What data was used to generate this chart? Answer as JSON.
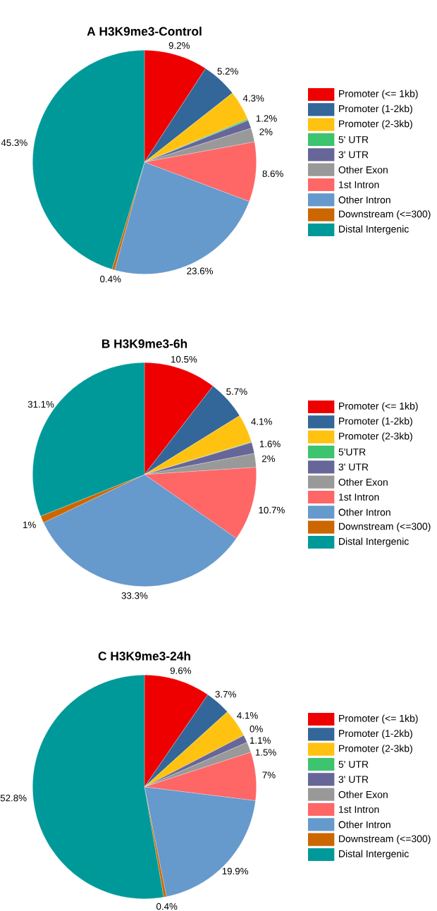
{
  "chart_data": [
    {
      "type": "pie",
      "title": "A H3K9me3-Control",
      "legend": "right",
      "categories": [
        "Promoter (<= 1kb)",
        "Promoter (1-2kb)",
        "Promoter (2-3kb)",
        "5' UTR",
        "3' UTR",
        "Other Exon",
        "1st Intron",
        "Other Intron",
        "Downstream (<=300)",
        "Distal Intergenic"
      ],
      "values": [
        9.2,
        5.2,
        4.3,
        0.2,
        1.2,
        2,
        8.6,
        23.6,
        0.4,
        45.3
      ],
      "value_labels": [
        "9.2%",
        "5.2%",
        "4.3%",
        null,
        "1.2%",
        "2%",
        "8.6%",
        "23.6%",
        "0.4%",
        "45.3%"
      ],
      "colors": [
        "#ee0000",
        "#336699",
        "#ffc211",
        "#3dc46e",
        "#666699",
        "#999999",
        "#ff6666",
        "#6699cc",
        "#cc6600",
        "#009999"
      ]
    },
    {
      "type": "pie",
      "title": "B H3K9me3-6h",
      "legend": "right",
      "categories": [
        "Promoter (<= 1kb)",
        "Promoter (1-2kb)",
        "Promoter (2-3kb)",
        "5'UTR",
        "3' UTR",
        "Other Exon",
        "1st Intron",
        "Other Intron",
        "Downstream (<=300)",
        "Distal Intergenic"
      ],
      "values": [
        10.5,
        5.7,
        4.1,
        0.1,
        1.6,
        2,
        10.7,
        33.3,
        1,
        31.1
      ],
      "value_labels": [
        "10.5%",
        "5.7%",
        "4.1%",
        null,
        "1.6%",
        "2%",
        "10.7%",
        "33.3%",
        "1%",
        "31.1%"
      ],
      "colors": [
        "#ee0000",
        "#336699",
        "#ffc211",
        "#3dc46e",
        "#666699",
        "#999999",
        "#ff6666",
        "#6699cc",
        "#cc6600",
        "#009999"
      ]
    },
    {
      "type": "pie",
      "title": "C H3K9me3-24h",
      "legend": "right",
      "categories": [
        "Promoter (<= 1kb)",
        "Promoter (1-2kb)",
        "Promoter (2-3kb)",
        "5' UTR",
        "3' UTR",
        "Other Exon",
        "1st Intron",
        "Other Intron",
        "Downstream (<=300)",
        "Distal Intergenic"
      ],
      "values": [
        9.6,
        3.7,
        4.1,
        0,
        1.1,
        1.5,
        7,
        19.9,
        0.4,
        52.8
      ],
      "value_labels": [
        "9.6%",
        "3.7%",
        "4.1%",
        "0%",
        "1.1%",
        "1.5%",
        "7%",
        "19.9%",
        "0.4%",
        "52.8%"
      ],
      "colors": [
        "#ee0000",
        "#336699",
        "#ffc211",
        "#3dc46e",
        "#666699",
        "#999999",
        "#ff6666",
        "#6699cc",
        "#cc6600",
        "#009999"
      ]
    }
  ]
}
